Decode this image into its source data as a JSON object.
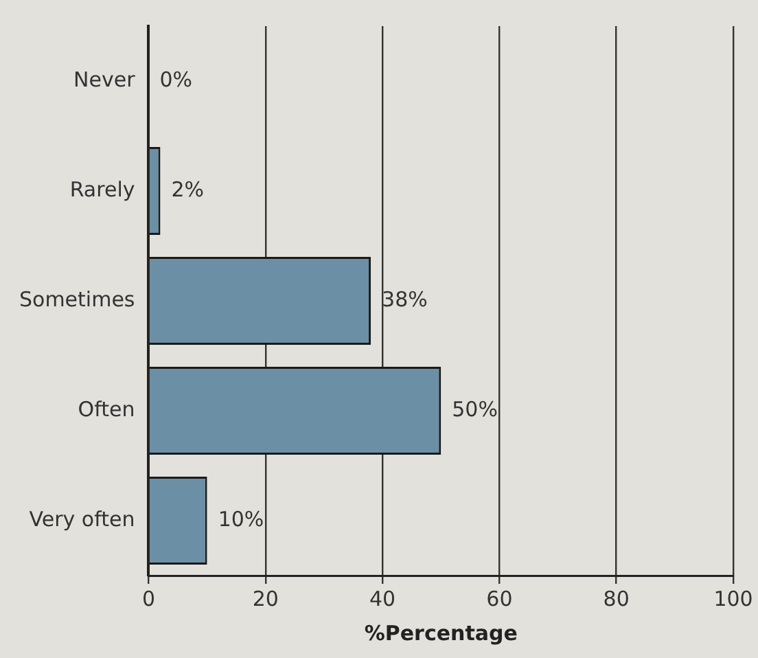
{
  "chart_data": {
    "type": "bar",
    "orientation": "horizontal",
    "xlabel": "%Percentage",
    "categories": [
      "Never",
      "Rarely",
      "Sometimes",
      "Often",
      "Very often"
    ],
    "values": [
      0,
      2,
      38,
      50,
      10
    ],
    "value_labels": [
      "0%",
      "2%",
      "38%",
      "50%",
      "10%"
    ],
    "color": "#6b8fa5",
    "xlim": [
      0,
      100
    ],
    "xticks": [
      0,
      20,
      40,
      60,
      80,
      100
    ],
    "grid": "x"
  }
}
